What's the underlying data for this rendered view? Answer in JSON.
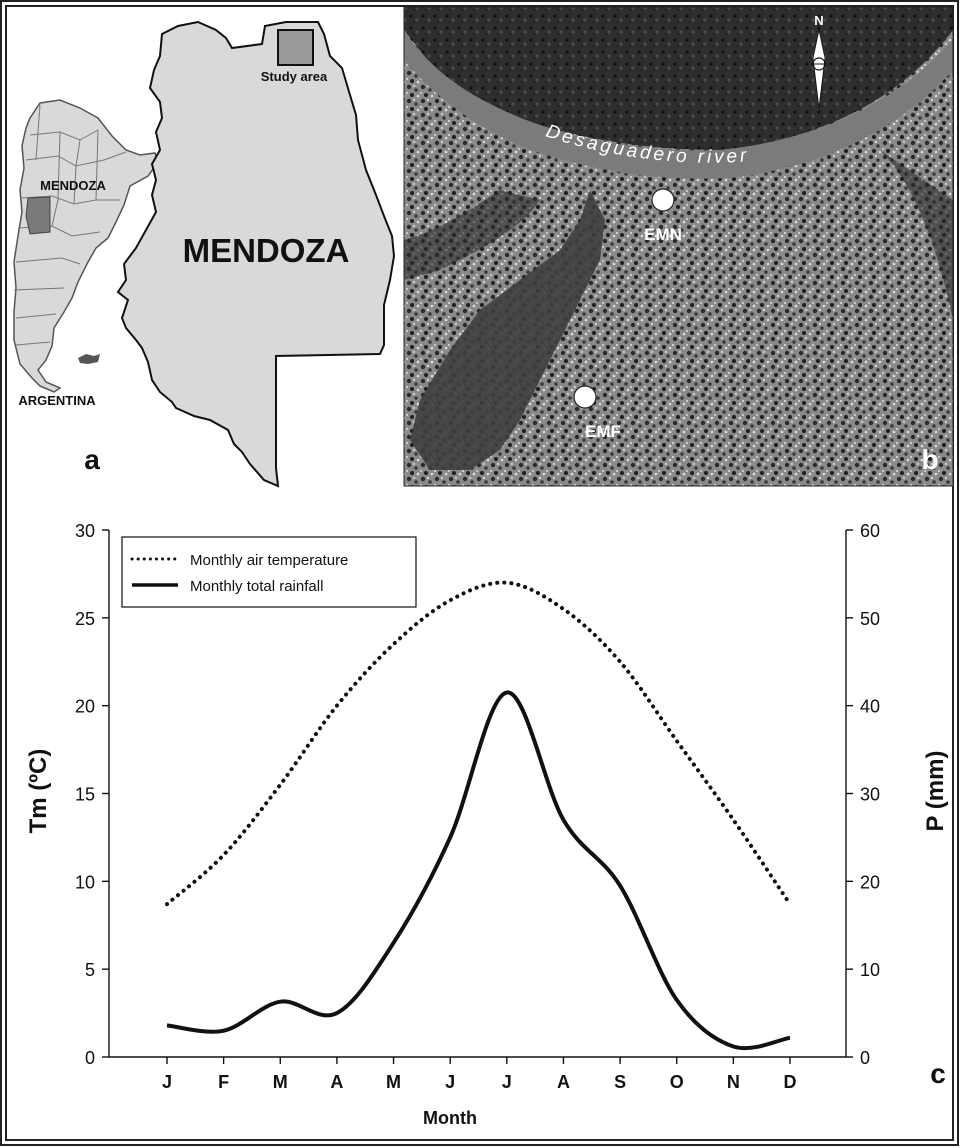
{
  "panel_a": {
    "label": "a",
    "province_label": "MENDOZA",
    "country_label": "ARGENTINA",
    "inset_province_label": "MENDOZA",
    "study_area_label": "Study area"
  },
  "panel_b": {
    "label": "b",
    "river_label": "Desaguadero river",
    "site_1": "EMN",
    "site_2": "EMF",
    "north_label": "N"
  },
  "panel_c": {
    "label": "c"
  },
  "chart_data": {
    "type": "line",
    "categories": [
      "J",
      "F",
      "M",
      "A",
      "M",
      "J",
      "J",
      "A",
      "S",
      "O",
      "N",
      "D"
    ],
    "xlabel": "Month",
    "ylabel_left": "Tm (ºC)",
    "ylabel_right": "P (mm)",
    "ylim_left": [
      0,
      30
    ],
    "ylim_right": [
      0,
      60
    ],
    "yticks_left": [
      0,
      5,
      10,
      15,
      20,
      25,
      30
    ],
    "yticks_right": [
      0,
      10,
      20,
      30,
      40,
      50,
      60
    ],
    "legend_position": "top-left",
    "series": [
      {
        "name": "Monthly air temperature",
        "axis": "left",
        "style": "dotted",
        "values": [
          8.7,
          11.5,
          15.5,
          20.0,
          23.5,
          26.0,
          27.0,
          25.5,
          22.5,
          18.0,
          13.5,
          8.7
        ]
      },
      {
        "name": "Monthly total rainfall",
        "axis": "right",
        "style": "solid",
        "values": [
          3.6,
          3.0,
          6.3,
          5.0,
          13.0,
          25.0,
          41.5,
          27.0,
          19.5,
          6.5,
          1.2,
          2.2
        ]
      }
    ]
  }
}
